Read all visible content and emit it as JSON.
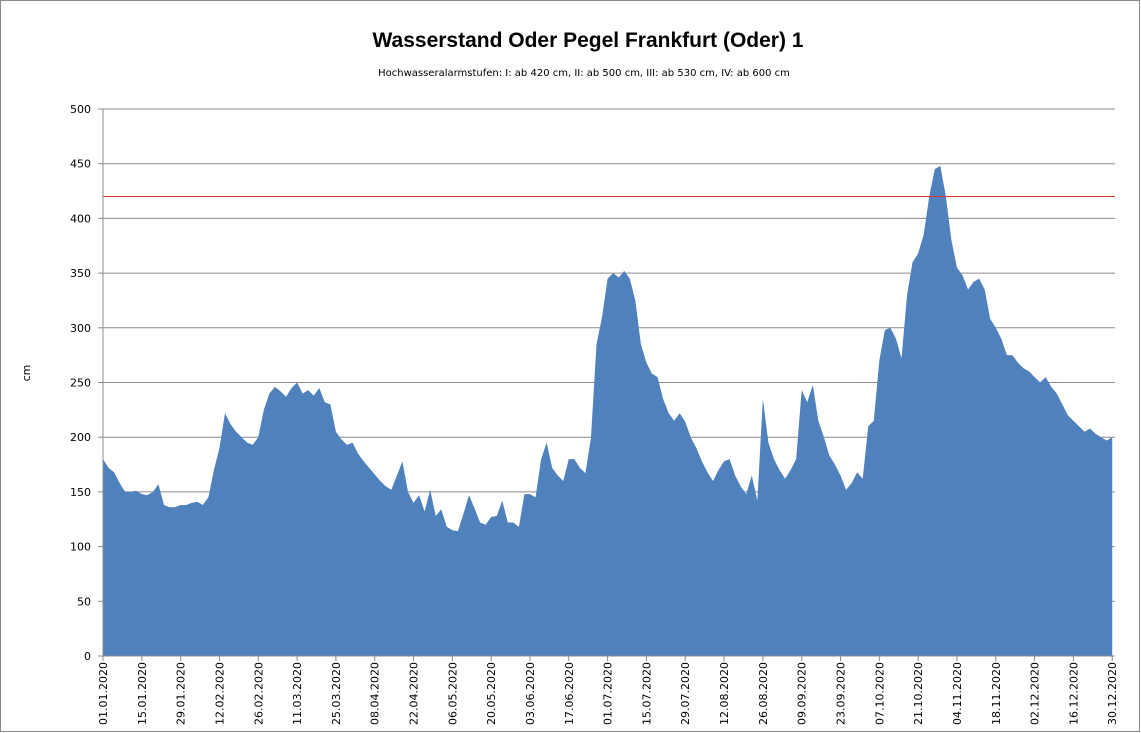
{
  "chart_data": {
    "type": "area",
    "title": "Wasserstand Oder Pegel Frankfurt (Oder) 1",
    "subtitle": "Hochwasseralarmstufen: I: ab 420 cm, II: ab 500 cm, III: ab 530 cm,  IV: ab 600 cm",
    "y_label": "cm",
    "color": "#4f81bd",
    "threshold": 420,
    "threshold_color": "#e03030",
    "grid": true,
    "ylim": [
      0,
      500
    ],
    "yticks": [
      0,
      50,
      100,
      150,
      200,
      250,
      300,
      350,
      400,
      450,
      500
    ],
    "categories": [
      "01.01.2020",
      null,
      null,
      null,
      null,
      null,
      null,
      "15.01.2020",
      null,
      null,
      null,
      null,
      null,
      null,
      "29.01.2020",
      null,
      null,
      null,
      null,
      null,
      null,
      "12.02.2020",
      null,
      null,
      null,
      null,
      null,
      null,
      "26.02.2020",
      null,
      null,
      null,
      null,
      null,
      null,
      "11.03.2020",
      null,
      null,
      null,
      null,
      null,
      null,
      "25.03.2020",
      null,
      null,
      null,
      null,
      null,
      null,
      "08.04.2020",
      null,
      null,
      null,
      null,
      null,
      null,
      "22.04.2020",
      null,
      null,
      null,
      null,
      null,
      null,
      "06.05.2020",
      null,
      null,
      null,
      null,
      null,
      null,
      "20.05.2020",
      null,
      null,
      null,
      null,
      null,
      null,
      "03.06.2020",
      null,
      null,
      null,
      null,
      null,
      null,
      "17.06.2020",
      null,
      null,
      null,
      null,
      null,
      null,
      "01.07.2020",
      null,
      null,
      null,
      null,
      null,
      null,
      "15.07.2020",
      null,
      null,
      null,
      null,
      null,
      null,
      "29.07.2020",
      null,
      null,
      null,
      null,
      null,
      null,
      "12.08.2020",
      null,
      null,
      null,
      null,
      null,
      null,
      "26.08.2020",
      null,
      null,
      null,
      null,
      null,
      null,
      "09.09.2020",
      null,
      null,
      null,
      null,
      null,
      null,
      "23.09.2020",
      null,
      null,
      null,
      null,
      null,
      null,
      "07.10.2020",
      null,
      null,
      null,
      null,
      null,
      null,
      "21.10.2020",
      null,
      null,
      null,
      null,
      null,
      null,
      "04.11.2020",
      null,
      null,
      null,
      null,
      null,
      null,
      "18.11.2020",
      null,
      null,
      null,
      null,
      null,
      null,
      "02.12.2020",
      null,
      null,
      null,
      null,
      null,
      null,
      "16.12.2020",
      null,
      null,
      null,
      null,
      null,
      null,
      "30.12.2020"
    ],
    "values": [
      180,
      172,
      168,
      158,
      150,
      150,
      151,
      148,
      147,
      150,
      157,
      138,
      136,
      136,
      138,
      138,
      140,
      141,
      138,
      145,
      170,
      190,
      222,
      212,
      205,
      200,
      195,
      193,
      200,
      225,
      240,
      246,
      242,
      237,
      245,
      250,
      240,
      243,
      238,
      245,
      232,
      230,
      205,
      198,
      193,
      195,
      185,
      178,
      172,
      166,
      160,
      155,
      152,
      165,
      178,
      150,
      140,
      147,
      132,
      152,
      128,
      134,
      118,
      115,
      114,
      130,
      147,
      135,
      122,
      120,
      127,
      128,
      142,
      122,
      122,
      118,
      148,
      148,
      145,
      180,
      195,
      172,
      165,
      160,
      180,
      180,
      172,
      167,
      200,
      285,
      310,
      345,
      350,
      346,
      352,
      345,
      325,
      285,
      268,
      258,
      255,
      235,
      222,
      215,
      222,
      214,
      200,
      190,
      178,
      168,
      160,
      170,
      178,
      180,
      165,
      155,
      148,
      165,
      142,
      235,
      195,
      180,
      170,
      162,
      170,
      180,
      243,
      232,
      248,
      215,
      200,
      183,
      175,
      165,
      152,
      158,
      168,
      162,
      210,
      215,
      270,
      298,
      300,
      290,
      272,
      330,
      360,
      368,
      385,
      420,
      445,
      448,
      420,
      380,
      355,
      348,
      335,
      342,
      345,
      335,
      308,
      300,
      290,
      275,
      275,
      268,
      263,
      260,
      255,
      250,
      255,
      246,
      240,
      230,
      220,
      215,
      210,
      205,
      208,
      203,
      200,
      197,
      200
    ]
  }
}
